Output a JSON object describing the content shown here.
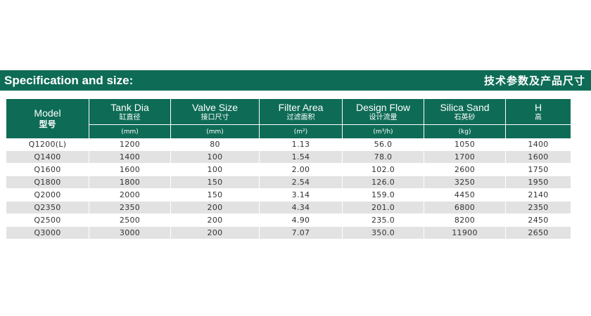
{
  "banner": {
    "title_en": "Specification and size:",
    "title_cn": "技术参数及产品尺寸"
  },
  "table": {
    "model_header": {
      "en": "Model",
      "cn": "型号"
    },
    "columns": [
      {
        "en": "Tank Dia",
        "cn": "缸直径",
        "unit": "(mm)"
      },
      {
        "en": "Valve Size",
        "cn": "接口尺寸",
        "unit": "(mm)"
      },
      {
        "en": "Filter Area",
        "cn": "过滤面积",
        "unit": "(m²)"
      },
      {
        "en": "Design Flow",
        "cn": "设计流量",
        "unit": "(m³/h)"
      },
      {
        "en": "Silica Sand",
        "cn": "石英砂",
        "unit": "(kg)"
      },
      {
        "en": "H",
        "cn": "高",
        "unit": ""
      }
    ],
    "rows": [
      [
        "Q1200(L)",
        "1200",
        "80",
        "1.13",
        "56.0",
        "1050",
        "1400"
      ],
      [
        "Q1400",
        "1400",
        "100",
        "1.54",
        "78.0",
        "1700",
        "1600"
      ],
      [
        "Q1600",
        "1600",
        "100",
        "2.00",
        "102.0",
        "2600",
        "1750"
      ],
      [
        "Q1800",
        "1800",
        "150",
        "2.54",
        "126.0",
        "3250",
        "1950"
      ],
      [
        "Q2000",
        "2000",
        "150",
        "3.14",
        "159.0",
        "4450",
        "2140"
      ],
      [
        "Q2350",
        "2350",
        "200",
        "4.34",
        "201.0",
        "6800",
        "2350"
      ],
      [
        "Q2500",
        "2500",
        "200",
        "4.90",
        "235.0",
        "8200",
        "2450"
      ],
      [
        "Q3000",
        "3000",
        "200",
        "7.07",
        "350.0",
        "11900",
        "2650"
      ]
    ]
  },
  "colors": {
    "accent": "#0e6c56",
    "row_alt": "#e2e2e2"
  }
}
